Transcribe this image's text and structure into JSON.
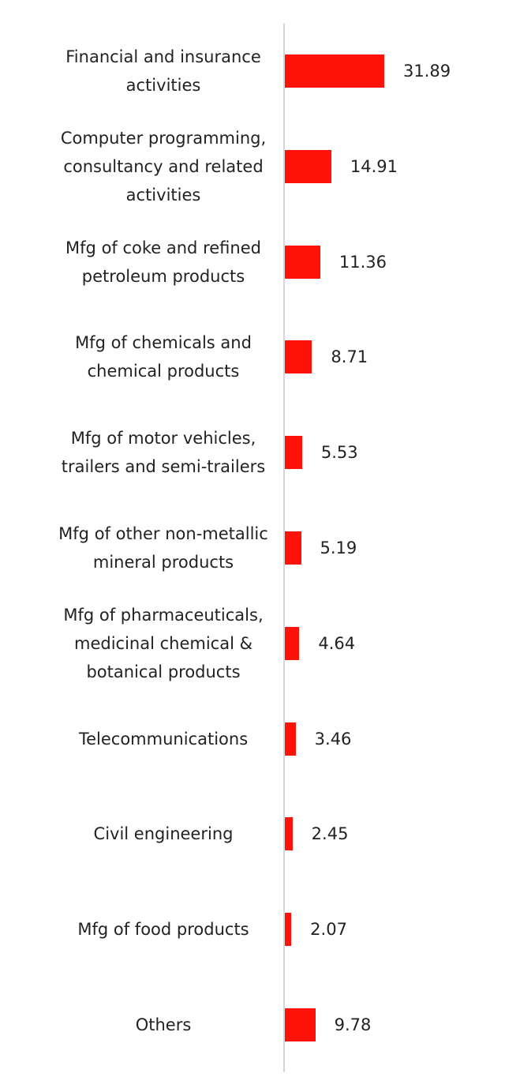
{
  "chart_data": {
    "type": "bar",
    "orientation": "horizontal",
    "color": "#ff1208",
    "categories": [
      "Financial and insurance activities",
      "Computer programming, consultancy and related activities",
      "Mfg of coke and refined petroleum products",
      "Mfg of chemicals and chemical products",
      "Mfg of motor vehicles, trailers and semi-trailers",
      "Mfg of other non-metallic mineral products",
      "Mfg of pharmaceuticals, medicinal chemical & botanical products",
      "Telecommunications",
      "Civil engineering",
      "Mfg of food products",
      "Others"
    ],
    "values": [
      31.89,
      14.91,
      11.36,
      8.71,
      5.53,
      5.19,
      4.64,
      3.46,
      2.45,
      2.07,
      9.78
    ]
  }
}
